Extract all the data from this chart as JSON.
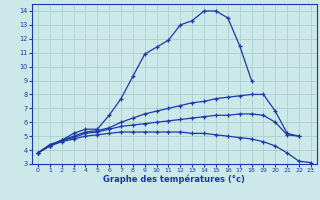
{
  "xlabel": "Graphe des températures (°c)",
  "bg_color": "#cce8e8",
  "grid_color": "#aacece",
  "line_color": "#1a3aaa",
  "ylim": [
    3,
    14.5
  ],
  "yticks": [
    3,
    4,
    5,
    6,
    7,
    8,
    9,
    10,
    11,
    12,
    13,
    14
  ],
  "xlim": [
    -0.5,
    23.5
  ],
  "xticks": [
    0,
    1,
    2,
    3,
    4,
    5,
    6,
    7,
    8,
    9,
    10,
    11,
    12,
    13,
    14,
    15,
    16,
    17,
    18,
    19,
    20,
    21,
    22,
    23
  ],
  "curve_max_x": [
    0,
    1,
    2,
    3,
    4,
    5,
    6,
    7,
    8,
    9,
    10,
    11,
    12,
    13,
    14,
    15,
    16,
    17,
    18
  ],
  "curve_max_y": [
    3.8,
    4.4,
    4.7,
    5.2,
    5.5,
    5.5,
    6.5,
    7.7,
    9.3,
    10.9,
    11.4,
    11.9,
    13.0,
    13.3,
    14.0,
    14.0,
    13.5,
    11.5,
    9.0
  ],
  "curve_avgh_x": [
    0,
    1,
    2,
    3,
    4,
    5,
    6,
    7,
    8,
    9,
    10,
    11,
    12,
    13,
    14,
    15,
    16,
    17,
    18,
    19,
    20,
    21,
    22
  ],
  "curve_avgh_y": [
    3.8,
    4.3,
    4.7,
    5.0,
    5.3,
    5.4,
    5.6,
    6.0,
    6.3,
    6.6,
    6.8,
    7.0,
    7.2,
    7.4,
    7.5,
    7.7,
    7.8,
    7.9,
    8.0,
    8.0,
    6.8,
    5.2,
    5.0
  ],
  "curve_avgl_x": [
    0,
    1,
    2,
    3,
    4,
    5,
    6,
    7,
    8,
    9,
    10,
    11,
    12,
    13,
    14,
    15,
    16,
    17,
    18,
    19,
    20,
    21,
    22
  ],
  "curve_avgl_y": [
    3.8,
    4.3,
    4.7,
    4.9,
    5.2,
    5.3,
    5.5,
    5.7,
    5.8,
    5.9,
    6.0,
    6.1,
    6.2,
    6.3,
    6.4,
    6.5,
    6.5,
    6.6,
    6.6,
    6.5,
    6.0,
    5.1,
    5.0
  ],
  "curve_min_x": [
    0,
    1,
    2,
    3,
    4,
    5,
    6,
    7,
    8,
    9,
    10,
    11,
    12,
    13,
    14,
    15,
    16,
    17,
    18,
    19,
    20,
    21,
    22,
    23
  ],
  "curve_min_y": [
    3.8,
    4.3,
    4.6,
    4.8,
    5.0,
    5.1,
    5.2,
    5.3,
    5.3,
    5.3,
    5.3,
    5.3,
    5.3,
    5.2,
    5.2,
    5.1,
    5.0,
    4.9,
    4.8,
    4.6,
    4.3,
    3.8,
    3.2,
    3.1
  ]
}
